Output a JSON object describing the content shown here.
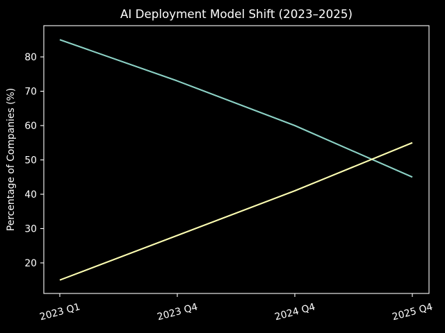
{
  "chart_data": {
    "type": "line",
    "title": "AI Deployment Model Shift (2023–2025)",
    "xlabel": "",
    "ylabel": "Percentage of Companies (%)",
    "categories": [
      "2023 Q1",
      "2023 Q4",
      "2024 Q4",
      "2025 Q4"
    ],
    "series": [
      {
        "name": "teal-declining-line",
        "color": "#8dd3c7",
        "values": [
          85,
          73,
          60,
          45
        ]
      },
      {
        "name": "yellow-rising-line",
        "color": "#feffb3",
        "values": [
          15,
          28,
          41,
          55
        ]
      }
    ],
    "yticks": [
      20,
      30,
      40,
      50,
      60,
      70,
      80
    ],
    "ylim": [
      11.1,
      89.1
    ],
    "grid": false,
    "legend": "none",
    "background_color": "#000000",
    "text_color": "#ffffff"
  }
}
